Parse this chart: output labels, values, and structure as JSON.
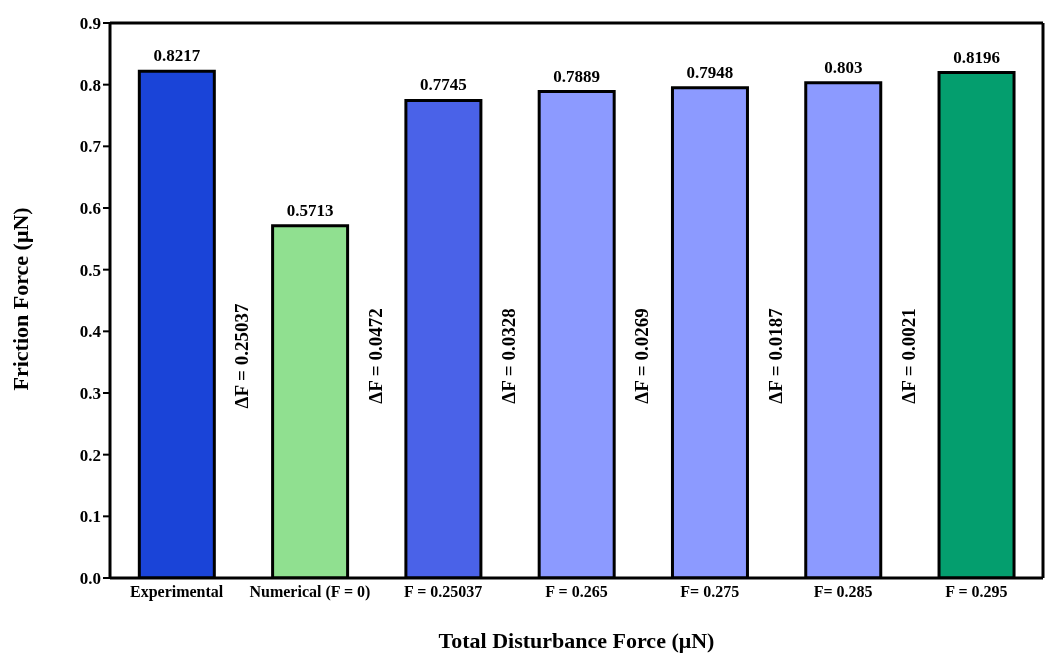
{
  "chart_data": {
    "type": "bar",
    "xlabel": "Total Disturbance Force (μN)",
    "ylabel": "Friction Force (μN)",
    "categories": [
      "Experimental",
      "Numerical (F = 0)",
      "F = 0.25037",
      "F = 0.265",
      "F= 0.275",
      "F= 0.285",
      "F = 0.295"
    ],
    "values": [
      0.8217,
      0.5713,
      0.7745,
      0.7889,
      0.7948,
      0.803,
      0.8196
    ],
    "colors": [
      "#1a44d8",
      "#90e090",
      "#4a62e8",
      "#8c9aff",
      "#8c9aff",
      "#8c9aff",
      "#049e6e"
    ],
    "ylim": [
      0,
      0.9
    ],
    "yticks": [
      {
        "value": 0,
        "label": "0.0"
      },
      0.1,
      0.2,
      0.3,
      0.4,
      0.5,
      0.6,
      0.7,
      0.8,
      0.9
    ],
    "grid": false,
    "legend": false,
    "data_labels": true,
    "annotations": [
      "ΔF = 0.25037",
      "ΔF = 0.0472",
      "ΔF = 0.0328",
      "ΔF = 0.0269",
      "ΔF = 0.0187",
      "ΔF = 0.0021"
    ]
  }
}
